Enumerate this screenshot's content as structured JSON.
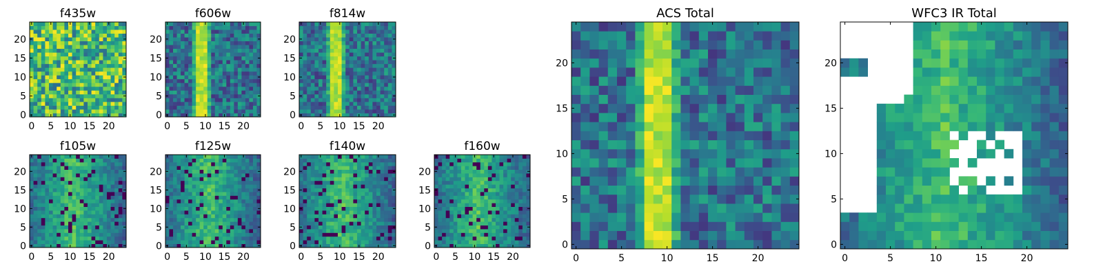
{
  "figure": {
    "colormap": "viridis",
    "background": "#ffffff",
    "nan_color": "#ffffff"
  },
  "chart_data": [
    {
      "type": "heatmap",
      "title": "f435w",
      "grid": [
        25,
        25
      ],
      "xlim": [
        0,
        24
      ],
      "ylim": [
        0,
        24
      ],
      "xticks": [
        "0",
        "5",
        "10",
        "15",
        "20"
      ],
      "yticks": [
        "0",
        "5",
        "10",
        "15",
        "20"
      ],
      "pattern": "uniform noise",
      "value_range": [
        0.35,
        1.0
      ],
      "seed": 11
    },
    {
      "type": "heatmap",
      "title": "f606w",
      "grid": [
        25,
        25
      ],
      "xlim": [
        0,
        24
      ],
      "ylim": [
        0,
        24
      ],
      "xticks": [
        "0",
        "5",
        "10",
        "15",
        "20"
      ],
      "yticks": [
        "0",
        "5",
        "10",
        "15",
        "20"
      ],
      "pattern": "vertical band",
      "band_columns": [
        8,
        9,
        10
      ],
      "value_range": [
        0.15,
        1.0
      ],
      "seed": 22
    },
    {
      "type": "heatmap",
      "title": "f814w",
      "grid": [
        25,
        25
      ],
      "xlim": [
        0,
        24
      ],
      "ylim": [
        0,
        24
      ],
      "xticks": [
        "0",
        "5",
        "10",
        "15",
        "20"
      ],
      "yticks": [
        "0",
        "5",
        "10",
        "15",
        "20"
      ],
      "pattern": "vertical band",
      "band_columns": [
        8,
        9,
        10
      ],
      "value_range": [
        0.15,
        1.0
      ],
      "seed": 33
    },
    {
      "type": "heatmap",
      "title": "f105w",
      "grid": [
        25,
        25
      ],
      "xlim": [
        0,
        24
      ],
      "ylim": [
        0,
        24
      ],
      "xticks": [
        "0",
        "5",
        "10",
        "15",
        "20"
      ],
      "yticks": [
        "0",
        "5",
        "10",
        "15",
        "20"
      ],
      "pattern": "smooth field with holes",
      "value_range": [
        0.0,
        1.0
      ],
      "seed": 44
    },
    {
      "type": "heatmap",
      "title": "f125w",
      "grid": [
        25,
        25
      ],
      "xlim": [
        0,
        24
      ],
      "ylim": [
        0,
        24
      ],
      "xticks": [
        "0",
        "5",
        "10",
        "15",
        "20"
      ],
      "yticks": [
        "0",
        "5",
        "10",
        "15",
        "20"
      ],
      "pattern": "smooth field with holes",
      "value_range": [
        0.0,
        1.0
      ],
      "seed": 55
    },
    {
      "type": "heatmap",
      "title": "f140w",
      "grid": [
        25,
        25
      ],
      "xlim": [
        0,
        24
      ],
      "ylim": [
        0,
        24
      ],
      "xticks": [
        "0",
        "5",
        "10",
        "15",
        "20"
      ],
      "yticks": [
        "0",
        "5",
        "10",
        "15",
        "20"
      ],
      "pattern": "smooth field with holes",
      "value_range": [
        0.0,
        1.0
      ],
      "seed": 66
    },
    {
      "type": "heatmap",
      "title": "f160w",
      "grid": [
        25,
        25
      ],
      "xlim": [
        0,
        24
      ],
      "ylim": [
        0,
        24
      ],
      "xticks": [
        "0",
        "5",
        "10",
        "15",
        "20"
      ],
      "yticks": [
        "0",
        "5",
        "10",
        "15",
        "20"
      ],
      "pattern": "smooth field with holes",
      "value_range": [
        0.0,
        1.0
      ],
      "seed": 77
    },
    {
      "type": "heatmap",
      "title": "ACS Total",
      "grid": [
        25,
        25
      ],
      "xlim": [
        0,
        24
      ],
      "ylim": [
        0,
        24
      ],
      "xticks": [
        "0",
        "5",
        "10",
        "15",
        "20"
      ],
      "yticks": [
        "0",
        "5",
        "10",
        "15",
        "20"
      ],
      "pattern": "vertical band",
      "band_columns": [
        8,
        9,
        10
      ],
      "value_range": [
        0.15,
        1.0
      ],
      "seed": 88
    },
    {
      "type": "heatmap",
      "title": "WFC3 IR Total",
      "grid": [
        25,
        25
      ],
      "xlim": [
        0,
        24
      ],
      "ylim": [
        0,
        24
      ],
      "xticks": [
        "0",
        "5",
        "10",
        "15",
        "20"
      ],
      "yticks": [
        "0",
        "5",
        "10",
        "15",
        "20"
      ],
      "pattern": "smooth field with blank (NaN) regions",
      "value_range": [
        0.2,
        1.0
      ],
      "seed": 99
    }
  ]
}
